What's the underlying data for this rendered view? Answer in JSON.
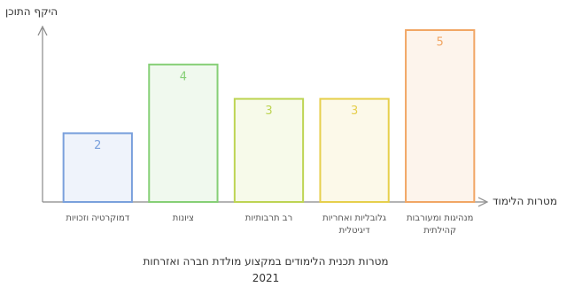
{
  "chart_data": {
    "type": "bar",
    "title": "מטרות תכנית הלימודים במקצוע מולדת חברה ואזרחות 2021",
    "y_label": "היקף התוכן",
    "x_label": "מטרות הלימוד",
    "categories": [
      "דמוקרטיה וזכויות",
      "ציונות",
      "רב תרבותיות",
      "גלובליות ואחריות דיגיטלית",
      "מנהיגות ומעורבות קהילתית"
    ],
    "values": [
      2,
      4,
      3,
      3,
      5
    ],
    "colors": [
      "#7aa0dc",
      "#86cf76",
      "#bdd453",
      "#e6cf4c",
      "#f1a664"
    ],
    "ylim": [
      0,
      5
    ]
  }
}
